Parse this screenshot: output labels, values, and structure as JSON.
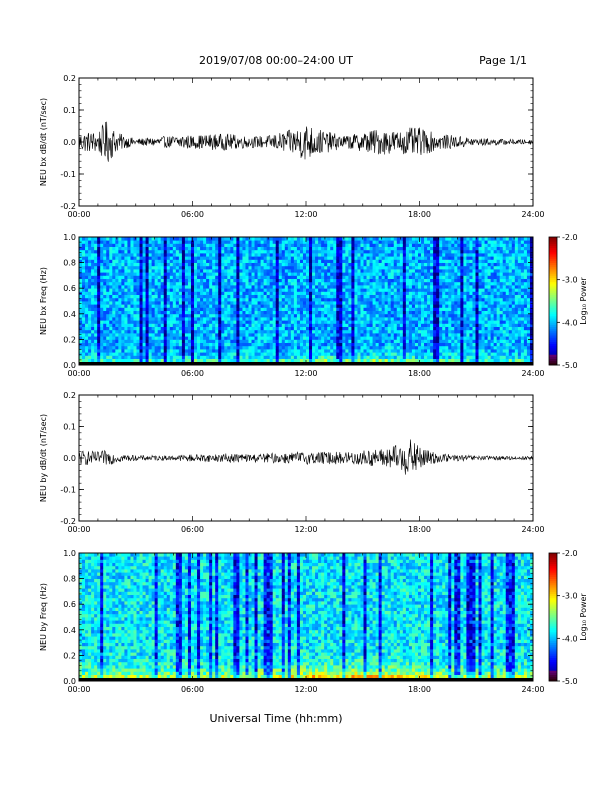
{
  "header": {
    "title": "2019/07/08  00:00–24:00 UT",
    "page": "Page 1/1"
  },
  "xlabel": "Universal Time (hh:mm)",
  "colors": {
    "trace": "#000000",
    "background": "#ffffff",
    "ground": "#000000"
  },
  "chart_data": [
    {
      "type": "line",
      "ylabel": "NEU bx dB/dt (nT/sec)",
      "x": [
        "00:00",
        "06:00",
        "12:00",
        "18:00",
        "24:00"
      ],
      "xlim": [
        0,
        24
      ],
      "ylim": [
        -0.2,
        0.2
      ],
      "yticks": [
        "0.2",
        "0.1",
        "0.0",
        "-0.1",
        "-0.2"
      ],
      "series": [
        {
          "envelope_hours": [
            0,
            1,
            1.5,
            2,
            3,
            4,
            5,
            5.5,
            6,
            7,
            8,
            9,
            10,
            11,
            11.5,
            12,
            12.5,
            13,
            14,
            15,
            15.5,
            16,
            17,
            17.5,
            18,
            18.5,
            19,
            20,
            21,
            22,
            23,
            24
          ],
          "amplitude": [
            0.03,
            0.035,
            0.07,
            0.03,
            0.01,
            0.015,
            0.02,
            0.025,
            0.02,
            0.025,
            0.025,
            0.018,
            0.02,
            0.035,
            0.045,
            0.06,
            0.045,
            0.035,
            0.02,
            0.03,
            0.04,
            0.04,
            0.035,
            0.045,
            0.045,
            0.035,
            0.025,
            0.02,
            0.012,
            0.01,
            0.008,
            0.008
          ]
        }
      ]
    },
    {
      "type": "heatmap",
      "ylabel": "NEU bx Freq (Hz)",
      "x": [
        "00:00",
        "06:00",
        "12:00",
        "18:00",
        "24:00"
      ],
      "xlim": [
        0,
        24
      ],
      "ylim": [
        0,
        1.0
      ],
      "yticks": [
        "1.0",
        "0.8",
        "0.6",
        "0.4",
        "0.2",
        "0.0"
      ],
      "colorbar": {
        "label": "Log₁₀ Power",
        "ticks": [
          "-2.0",
          "-3.0",
          "-4.0",
          "-5.0"
        ],
        "range": [
          -5,
          -2
        ]
      },
      "low_freq_enhancement": "0.0–0.05 Hz strongest, peaking 12:00–18:00"
    },
    {
      "type": "line",
      "ylabel": "NEU by dB/dt (nT/sec)",
      "x": [
        "00:00",
        "06:00",
        "12:00",
        "18:00",
        "24:00"
      ],
      "xlim": [
        0,
        24
      ],
      "ylim": [
        -0.2,
        0.2
      ],
      "yticks": [
        "0.2",
        "0.1",
        "0.0",
        "-0.1",
        "-0.2"
      ],
      "series": [
        {
          "envelope_hours": [
            0,
            1,
            1.5,
            2,
            3,
            4,
            5,
            6,
            7,
            8,
            9,
            10,
            11,
            12,
            13,
            14,
            15,
            16,
            16.5,
            17,
            17.5,
            18,
            18.5,
            19,
            20,
            21,
            22,
            23,
            24
          ],
          "amplitude": [
            0.025,
            0.02,
            0.025,
            0.015,
            0.008,
            0.008,
            0.008,
            0.012,
            0.012,
            0.015,
            0.012,
            0.015,
            0.018,
            0.02,
            0.02,
            0.02,
            0.025,
            0.03,
            0.035,
            0.05,
            0.06,
            0.04,
            0.025,
            0.015,
            0.01,
            0.008,
            0.006,
            0.006,
            0.006
          ]
        }
      ]
    },
    {
      "type": "heatmap",
      "ylabel": "NEU by Freq (Hz)",
      "x": [
        "00:00",
        "06:00",
        "12:00",
        "18:00",
        "24:00"
      ],
      "xlim": [
        0,
        24
      ],
      "ylim": [
        0,
        1.0
      ],
      "yticks": [
        "1.0",
        "0.8",
        "0.6",
        "0.4",
        "0.2",
        "0.0"
      ],
      "colorbar": {
        "label": "Log₁₀ Power",
        "ticks": [
          "-2.0",
          "-3.0",
          "-4.0",
          "-5.0"
        ],
        "range": [
          -5,
          -2
        ]
      },
      "low_freq_enhancement": "0.0–0.1 Hz stronger, peaking 12:00–18:00"
    }
  ]
}
